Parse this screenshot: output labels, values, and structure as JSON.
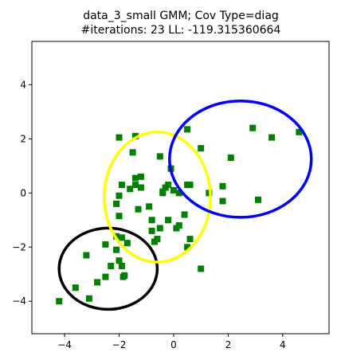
{
  "chart_data": {
    "type": "scatter",
    "title_lines": [
      "data_3_small GMM; Cov Type=diag",
      "#iterations: 23 LL: -119.315360664"
    ],
    "xlabel": "",
    "ylabel": "",
    "xlim": [
      -5.2,
      5.7
    ],
    "ylim": [
      -5.2,
      5.6
    ],
    "xticks": [
      -4,
      -2,
      0,
      2,
      4
    ],
    "yticks": [
      -4,
      -2,
      0,
      2,
      4
    ],
    "xtick_labels": [
      "−4",
      "−2",
      "0",
      "2",
      "4"
    ],
    "ytick_labels": [
      "−4",
      "−2",
      "0",
      "2",
      "4"
    ],
    "grid": false,
    "points": {
      "color": "#008000",
      "marker": "square",
      "x": [
        -4.2,
        -3.6,
        -3.2,
        -3.1,
        -2.8,
        -2.5,
        -2.5,
        -2.3,
        -2.1,
        -2.1,
        -2.0,
        -1.9,
        -1.85,
        -1.8,
        -1.7,
        -1.9,
        -2.0,
        -2.1,
        -2.0,
        -1.9,
        -1.6,
        -1.4,
        -1.3,
        -1.2,
        -1.4,
        -1.5,
        -1.4,
        -1.2,
        -0.9,
        -0.8,
        -0.6,
        -0.5,
        -0.4,
        -0.3,
        -0.2,
        -0.1,
        -0.2,
        -0.5,
        -0.7,
        -0.8,
        0.0,
        0.1,
        0.2,
        0.2,
        0.4,
        0.5,
        0.5,
        0.5,
        0.6,
        0.6,
        1.0,
        1.0,
        1.3,
        1.8,
        1.8,
        2.1,
        2.9,
        3.1,
        3.6,
        4.6,
        -0.4,
        -2.0
      ],
      "y": [
        -4.0,
        -3.5,
        -2.3,
        -3.9,
        -3.3,
        -3.1,
        -1.9,
        -2.7,
        -2.1,
        -1.6,
        -2.5,
        -2.7,
        -3.1,
        -3.05,
        -1.85,
        -1.65,
        -0.85,
        -0.4,
        -0.1,
        0.3,
        0.15,
        0.3,
        -0.6,
        0.2,
        0.55,
        1.5,
        2.1,
        0.6,
        -0.5,
        -1.0,
        -1.7,
        1.35,
        0.0,
        0.2,
        0.3,
        0.9,
        -1.0,
        -1.3,
        -1.8,
        -1.4,
        0.1,
        -1.3,
        0.0,
        -1.2,
        -0.8,
        -2.0,
        0.3,
        2.35,
        -1.7,
        0.3,
        1.65,
        -2.8,
        0.0,
        0.25,
        -0.3,
        1.3,
        2.4,
        -0.25,
        2.05,
        2.25,
        0.05,
        2.05
      ]
    },
    "ellipses": [
      {
        "name": "black",
        "color": "#000000",
        "cx": -2.4,
        "cy": -2.8,
        "rx": 1.8,
        "ry": 1.5
      },
      {
        "name": "yellow",
        "color": "#ffff00",
        "cx": -0.6,
        "cy": -0.15,
        "rx": 1.95,
        "ry": 2.4
      },
      {
        "name": "blue",
        "color": "#0000ff",
        "cx": 2.45,
        "cy": 1.25,
        "rx": 2.6,
        "ry": 2.15
      }
    ]
  }
}
